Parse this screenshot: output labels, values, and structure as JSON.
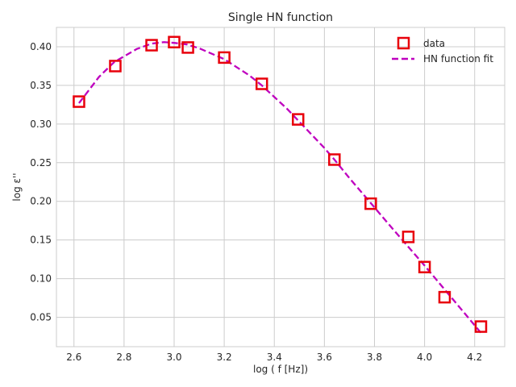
{
  "chart_data": {
    "type": "scatter",
    "title": "Single HN function",
    "xlabel": "log ( f [Hz])",
    "ylabel": "log ε''",
    "xlim": [
      2.53,
      4.32
    ],
    "ylim": [
      0.012,
      0.425
    ],
    "xticks": [
      2.6,
      2.8,
      3.0,
      3.2,
      3.4,
      3.6,
      3.8,
      4.0,
      4.2
    ],
    "xtick_labels": [
      "2.6",
      "2.8",
      "3.0",
      "3.2",
      "3.4",
      "3.6",
      "3.8",
      "4.0",
      "4.2"
    ],
    "yticks": [
      0.05,
      0.1,
      0.15,
      0.2,
      0.25,
      0.3,
      0.35,
      0.4
    ],
    "ytick_labels": [
      "0.05",
      "0.10",
      "0.15",
      "0.20",
      "0.25",
      "0.30",
      "0.35",
      "0.40"
    ],
    "grid": true,
    "legend_position": "top-right",
    "series": [
      {
        "name": "data",
        "kind": "markers",
        "marker": "square",
        "color": "#e8000b",
        "x": [
          2.62,
          2.765,
          2.91,
          3.0,
          3.055,
          3.2,
          3.35,
          3.495,
          3.64,
          3.785,
          3.935,
          4.0,
          4.08,
          4.225
        ],
        "y": [
          0.329,
          0.375,
          0.402,
          0.406,
          0.399,
          0.386,
          0.352,
          0.306,
          0.254,
          0.197,
          0.154,
          0.115,
          0.076,
          0.038
        ]
      },
      {
        "name": "HN function fit",
        "kind": "line",
        "style": "dashed",
        "color": "#bf00bf",
        "x": [
          2.62,
          2.7,
          2.76,
          2.85,
          2.91,
          2.96,
          3.0,
          3.05,
          3.1,
          3.2,
          3.3,
          3.35,
          3.45,
          3.5,
          3.6,
          3.64,
          3.7,
          3.79,
          3.85,
          3.93,
          4.0,
          4.08,
          4.15,
          4.225
        ],
        "y": [
          0.327,
          0.361,
          0.38,
          0.397,
          0.404,
          0.406,
          0.405,
          0.403,
          0.398,
          0.384,
          0.363,
          0.35,
          0.32,
          0.303,
          0.269,
          0.254,
          0.23,
          0.196,
          0.173,
          0.143,
          0.117,
          0.086,
          0.059,
          0.03
        ]
      }
    ]
  }
}
